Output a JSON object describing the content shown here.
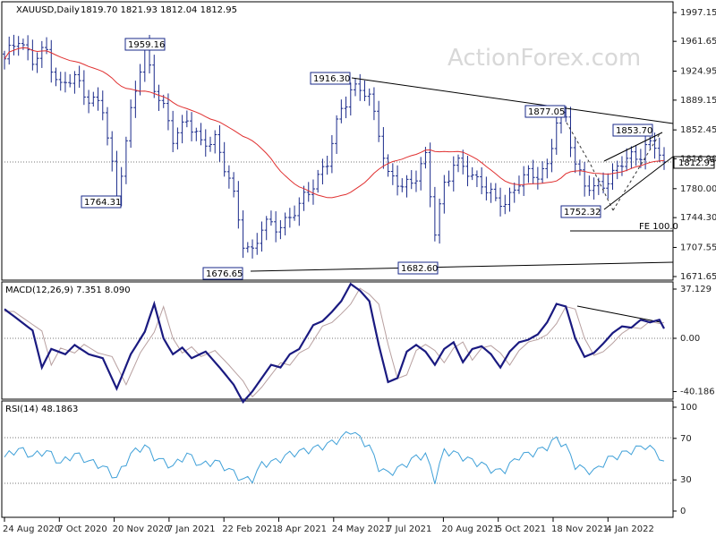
{
  "watermark": "ActionForex.com",
  "chart_data": [
    {
      "type": "candlestick",
      "header": {
        "symbol": "XAUUSD,Daily",
        "ohlc": "1819.70 1821.93 1812.04 1812.95"
      },
      "ylim": [
        1671.65,
        2000
      ],
      "yticks": [
        "1997.15",
        "1961.65",
        "1924.95",
        "1889.15",
        "1852.45",
        "1816.90",
        "1780.00",
        "1744.30",
        "1707.55",
        "1671.65"
      ],
      "last_price": {
        "label": "1812.95",
        "value": 1812.95
      },
      "annotations": [
        {
          "label": "1959.16",
          "value": 1959.16,
          "bar": 30
        },
        {
          "label": "1764.31",
          "value": 1764.31,
          "bar": 24
        },
        {
          "label": "1676.65",
          "value": 1676.65,
          "bar": 52
        },
        {
          "label": "1916.30",
          "value": 1916.3,
          "bar": 74
        },
        {
          "label": "1682.60",
          "value": 1682.6,
          "bar": 92
        },
        {
          "label": "1877.05",
          "value": 1877.05,
          "bar": 118
        },
        {
          "label": "1853.70",
          "value": 1853.7,
          "bar": 136
        },
        {
          "label": "1752.32",
          "value": 1752.32,
          "bar": 126
        }
      ],
      "fe_label": "FE 100.0",
      "fe_value": 1727
    },
    {
      "type": "line",
      "header": "MACD(12,26,9) 7.351 8.090",
      "ylim": [
        -48,
        45
      ],
      "yticks": [
        "37.129",
        "0.00",
        "-40.186"
      ],
      "series": [
        "macd",
        "signal"
      ]
    },
    {
      "type": "line",
      "header": "RSI(14) 48.1863",
      "ylim": [
        0,
        100
      ],
      "yticks": [
        "100",
        "70",
        "30",
        "0"
      ],
      "levels": [
        70,
        30
      ]
    }
  ],
  "xticks": [
    "24 Aug 2020",
    "7 Oct 2020",
    "20 Nov 2020",
    "7 Jan 2021",
    "22 Feb 2021",
    "8 Apr 2021",
    "24 May 2021",
    "7 Jul 2021",
    "20 Aug 2021",
    "5 Oct 2021",
    "18 Nov 2021",
    "4 Jan 2022"
  ],
  "price_keypoints": [
    [
      0,
      1935
    ],
    [
      3,
      1970
    ],
    [
      6,
      1935
    ],
    [
      9,
      1950
    ],
    [
      12,
      1905
    ],
    [
      15,
      1915
    ],
    [
      18,
      1895
    ],
    [
      21,
      1875
    ],
    [
      24,
      1775
    ],
    [
      27,
      1870
    ],
    [
      30,
      1955
    ],
    [
      32,
      1910
    ],
    [
      36,
      1840
    ],
    [
      39,
      1870
    ],
    [
      42,
      1830
    ],
    [
      45,
      1845
    ],
    [
      48,
      1790
    ],
    [
      51,
      1715
    ],
    [
      53,
      1705
    ],
    [
      55,
      1730
    ],
    [
      58,
      1735
    ],
    [
      61,
      1745
    ],
    [
      63,
      1755
    ],
    [
      66,
      1790
    ],
    [
      69,
      1810
    ],
    [
      72,
      1880
    ],
    [
      74,
      1905
    ],
    [
      76,
      1900
    ],
    [
      78,
      1890
    ],
    [
      80,
      1855
    ],
    [
      82,
      1795
    ],
    [
      85,
      1780
    ],
    [
      88,
      1800
    ],
    [
      90,
      1815
    ],
    [
      92,
      1725
    ],
    [
      94,
      1790
    ],
    [
      96,
      1810
    ],
    [
      99,
      1800
    ],
    [
      102,
      1790
    ],
    [
      105,
      1760
    ],
    [
      107,
      1765
    ],
    [
      110,
      1790
    ],
    [
      113,
      1795
    ],
    [
      116,
      1810
    ],
    [
      118,
      1860
    ],
    [
      120,
      1865
    ],
    [
      122,
      1815
    ],
    [
      124,
      1785
    ],
    [
      126,
      1775
    ],
    [
      129,
      1795
    ],
    [
      132,
      1810
    ],
    [
      135,
      1820
    ],
    [
      137,
      1835
    ],
    [
      139,
      1830
    ],
    [
      141,
      1812.95
    ]
  ],
  "rsi_keypoints": [
    [
      0,
      52
    ],
    [
      3,
      60
    ],
    [
      6,
      53
    ],
    [
      9,
      58
    ],
    [
      12,
      46
    ],
    [
      15,
      55
    ],
    [
      18,
      48
    ],
    [
      21,
      43
    ],
    [
      24,
      32
    ],
    [
      27,
      55
    ],
    [
      30,
      63
    ],
    [
      32,
      52
    ],
    [
      36,
      43
    ],
    [
      39,
      55
    ],
    [
      42,
      44
    ],
    [
      45,
      48
    ],
    [
      48,
      40
    ],
    [
      51,
      30
    ],
    [
      53,
      31
    ],
    [
      55,
      45
    ],
    [
      58,
      48
    ],
    [
      61,
      55
    ],
    [
      63,
      57
    ],
    [
      66,
      60
    ],
    [
      69,
      64
    ],
    [
      72,
      70
    ],
    [
      74,
      78
    ],
    [
      76,
      70
    ],
    [
      78,
      62
    ],
    [
      80,
      42
    ],
    [
      82,
      36
    ],
    [
      85,
      43
    ],
    [
      88,
      52
    ],
    [
      90,
      54
    ],
    [
      92,
      30
    ],
    [
      94,
      58
    ],
    [
      96,
      56
    ],
    [
      99,
      50
    ],
    [
      102,
      45
    ],
    [
      105,
      38
    ],
    [
      107,
      40
    ],
    [
      110,
      53
    ],
    [
      113,
      56
    ],
    [
      116,
      62
    ],
    [
      118,
      70
    ],
    [
      120,
      62
    ],
    [
      122,
      44
    ],
    [
      124,
      40
    ],
    [
      126,
      38
    ],
    [
      129,
      50
    ],
    [
      132,
      55
    ],
    [
      135,
      60
    ],
    [
      137,
      63
    ],
    [
      139,
      58
    ],
    [
      141,
      48.19
    ]
  ],
  "macd_keypoints": [
    [
      0,
      22
    ],
    [
      3,
      14
    ],
    [
      6,
      6
    ],
    [
      8,
      -22
    ],
    [
      10,
      -8
    ],
    [
      13,
      -12
    ],
    [
      15,
      -5
    ],
    [
      18,
      -12
    ],
    [
      21,
      -15
    ],
    [
      24,
      -38
    ],
    [
      27,
      -12
    ],
    [
      30,
      5
    ],
    [
      32,
      26
    ],
    [
      34,
      0
    ],
    [
      36,
      -12
    ],
    [
      38,
      -7
    ],
    [
      40,
      -15
    ],
    [
      43,
      -10
    ],
    [
      46,
      -22
    ],
    [
      49,
      -35
    ],
    [
      51,
      -48
    ],
    [
      53,
      -40
    ],
    [
      55,
      -30
    ],
    [
      57,
      -20
    ],
    [
      59,
      -22
    ],
    [
      61,
      -12
    ],
    [
      63,
      -8
    ],
    [
      66,
      10
    ],
    [
      68,
      13
    ],
    [
      70,
      20
    ],
    [
      72,
      28
    ],
    [
      74,
      41
    ],
    [
      76,
      36
    ],
    [
      78,
      28
    ],
    [
      80,
      -5
    ],
    [
      82,
      -33
    ],
    [
      84,
      -30
    ],
    [
      86,
      -10
    ],
    [
      88,
      -5
    ],
    [
      90,
      -10
    ],
    [
      92,
      -20
    ],
    [
      94,
      -8
    ],
    [
      96,
      -3
    ],
    [
      98,
      -18
    ],
    [
      100,
      -8
    ],
    [
      102,
      -6
    ],
    [
      104,
      -12
    ],
    [
      106,
      -22
    ],
    [
      108,
      -10
    ],
    [
      110,
      -3
    ],
    [
      112,
      -1
    ],
    [
      114,
      3
    ],
    [
      116,
      12
    ],
    [
      118,
      26
    ],
    [
      120,
      24
    ],
    [
      122,
      0
    ],
    [
      124,
      -14
    ],
    [
      126,
      -11
    ],
    [
      128,
      -4
    ],
    [
      130,
      4
    ],
    [
      132,
      9
    ],
    [
      134,
      8
    ],
    [
      136,
      14
    ],
    [
      138,
      12
    ],
    [
      140,
      14
    ],
    [
      141,
      7.35
    ]
  ]
}
